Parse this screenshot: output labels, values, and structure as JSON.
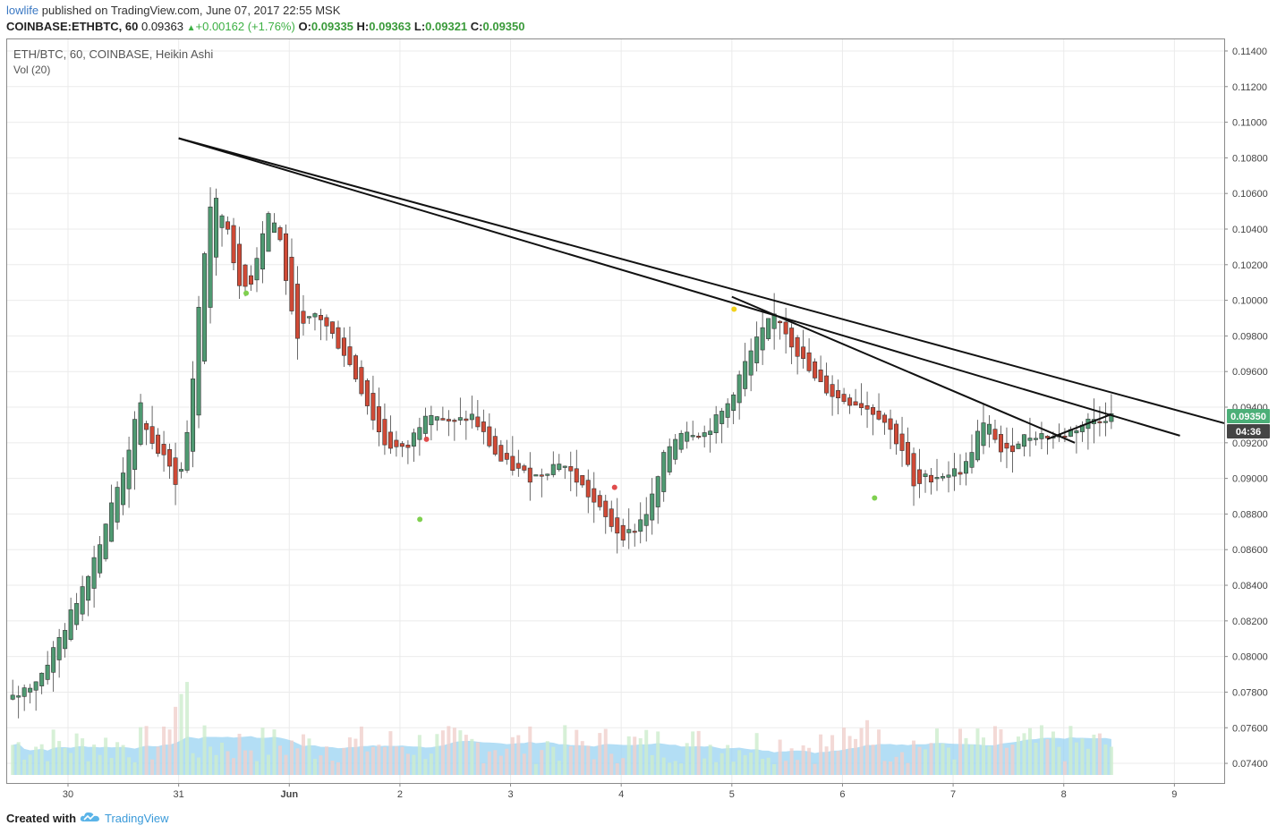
{
  "header": {
    "author": "lowlife",
    "published": "published on TradingView.com, June 07, 2017 22:55 MSK",
    "symbol": "COINBASE:ETHBTC, 60",
    "last": "0.09363",
    "change": "+0.00162 (+1.76%)",
    "o_label": "O:",
    "o_value": "0.09335",
    "h_label": "H:",
    "h_value": "0.09363",
    "l_label": "L:",
    "l_value": "0.09321",
    "c_label": "C:",
    "c_value": "0.09350"
  },
  "legend": {
    "series": "ETH/BTC, 60, COINBASE, Heikin Ashi",
    "volume": "Vol (20)"
  },
  "price_badge": "0.09350",
  "countdown_badge": "04:36",
  "footer": {
    "created_with": "Created with",
    "brand": "TradingView"
  },
  "colors": {
    "up": "#4f9a72",
    "down": "#d04a36",
    "volume_ma": "#9ad3f2",
    "vol_up": "#cdeccd",
    "vol_down": "#f0d0cc",
    "grid": "#ebebeb",
    "badge": "#4caf78",
    "badge_dark": "#444444",
    "brand": "#3a9ad9"
  },
  "chart_data": {
    "type": "candlestick",
    "style": "Heikin Ashi",
    "symbol": "ETH/BTC",
    "interval": "60",
    "exchange": "COINBASE",
    "y_ticks": [
      "0.11400",
      "0.11200",
      "0.11000",
      "0.10800",
      "0.10600",
      "0.10400",
      "0.10200",
      "0.10000",
      "0.09800",
      "0.09600",
      "0.09400",
      "0.09200",
      "0.09000",
      "0.08800",
      "0.08600",
      "0.08400",
      "0.08200",
      "0.08000",
      "0.07800",
      "0.07600",
      "0.07400"
    ],
    "ylim": [
      0.0734,
      0.1143
    ],
    "x_ticks": [
      "30",
      "31",
      "Jun",
      "2",
      "3",
      "4",
      "5",
      "6",
      "7",
      "8",
      "9"
    ],
    "x_tick_days": [
      -1.5,
      -0.5,
      0.5,
      1.5,
      2.5,
      3.5,
      4.5,
      5.5,
      6.5,
      7.5,
      8.5
    ],
    "xlim": [
      -2.05,
      8.95
    ],
    "close_path": [
      {
        "day": -2.0,
        "price": 0.0776
      },
      {
        "day": -1.75,
        "price": 0.0789
      },
      {
        "day": -1.5,
        "price": 0.082
      },
      {
        "day": -1.25,
        "price": 0.0858
      },
      {
        "day": -1.0,
        "price": 0.0905
      },
      {
        "day": -0.85,
        "price": 0.0942
      },
      {
        "day": -0.75,
        "price": 0.092
      },
      {
        "day": -0.6,
        "price": 0.0908
      },
      {
        "day": -0.5,
        "price": 0.0895
      },
      {
        "day": -0.4,
        "price": 0.0935
      },
      {
        "day": -0.3,
        "price": 0.101
      },
      {
        "day": -0.2,
        "price": 0.106
      },
      {
        "day": -0.05,
        "price": 0.104
      },
      {
        "day": 0.05,
        "price": 0.1005
      },
      {
        "day": 0.15,
        "price": 0.101
      },
      {
        "day": 0.3,
        "price": 0.105
      },
      {
        "day": 0.4,
        "price": 0.104
      },
      {
        "day": 0.55,
        "price": 0.098
      },
      {
        "day": 0.75,
        "price": 0.0993
      },
      {
        "day": 1.0,
        "price": 0.097
      },
      {
        "day": 1.15,
        "price": 0.095
      },
      {
        "day": 1.35,
        "price": 0.092
      },
      {
        "day": 1.55,
        "price": 0.0915
      },
      {
        "day": 1.75,
        "price": 0.094
      },
      {
        "day": 1.95,
        "price": 0.093
      },
      {
        "day": 2.15,
        "price": 0.0935
      },
      {
        "day": 2.4,
        "price": 0.091
      },
      {
        "day": 2.7,
        "price": 0.09
      },
      {
        "day": 2.95,
        "price": 0.091
      },
      {
        "day": 3.15,
        "price": 0.0895
      },
      {
        "day": 3.35,
        "price": 0.0878
      },
      {
        "day": 3.5,
        "price": 0.0868
      },
      {
        "day": 3.6,
        "price": 0.087
      },
      {
        "day": 3.75,
        "price": 0.0883
      },
      {
        "day": 3.9,
        "price": 0.0915
      },
      {
        "day": 4.05,
        "price": 0.0928
      },
      {
        "day": 4.25,
        "price": 0.0925
      },
      {
        "day": 4.45,
        "price": 0.094
      },
      {
        "day": 4.6,
        "price": 0.0962
      },
      {
        "day": 4.75,
        "price": 0.098
      },
      {
        "day": 4.9,
        "price": 0.0993
      },
      {
        "day": 5.05,
        "price": 0.0975
      },
      {
        "day": 5.25,
        "price": 0.0955
      },
      {
        "day": 5.45,
        "price": 0.0945
      },
      {
        "day": 5.65,
        "price": 0.0942
      },
      {
        "day": 5.85,
        "price": 0.0935
      },
      {
        "day": 6.05,
        "price": 0.0915
      },
      {
        "day": 6.15,
        "price": 0.0893
      },
      {
        "day": 6.25,
        "price": 0.09
      },
      {
        "day": 6.45,
        "price": 0.0903
      },
      {
        "day": 6.6,
        "price": 0.0905
      },
      {
        "day": 6.75,
        "price": 0.093
      },
      {
        "day": 6.85,
        "price": 0.0928
      },
      {
        "day": 6.95,
        "price": 0.0912
      },
      {
        "day": 7.1,
        "price": 0.0922
      },
      {
        "day": 7.25,
        "price": 0.0925
      },
      {
        "day": 7.45,
        "price": 0.0923
      },
      {
        "day": 7.6,
        "price": 0.0928
      },
      {
        "day": 7.75,
        "price": 0.0933
      },
      {
        "day": 7.9,
        "price": 0.0935
      }
    ],
    "trendlines": [
      {
        "from": {
          "day": -0.5,
          "price": 0.1091
        },
        "to": {
          "day": 8.55,
          "price": 0.0924
        }
      },
      {
        "from": {
          "day": -0.5,
          "price": 0.1091
        },
        "to": {
          "day": 8.95,
          "price": 0.0931
        }
      },
      {
        "from": {
          "day": 4.5,
          "price": 0.1002
        },
        "to": {
          "day": 7.6,
          "price": 0.092
        }
      },
      {
        "from": {
          "day": 7.35,
          "price": 0.0922
        },
        "to": {
          "day": 7.93,
          "price": 0.0936
        }
      }
    ],
    "markers": [
      {
        "day": 0.11,
        "price": 0.1004,
        "color": "#7fd04f"
      },
      {
        "day": 1.68,
        "price": 0.0877,
        "color": "#7fd04f"
      },
      {
        "day": 1.74,
        "price": 0.0922,
        "color": "#e04c4c"
      },
      {
        "day": 3.44,
        "price": 0.0895,
        "color": "#e04c4c"
      },
      {
        "day": 4.52,
        "price": 0.0995,
        "color": "#f2d21b"
      },
      {
        "day": 5.79,
        "price": 0.0889,
        "color": "#7fd04f"
      }
    ],
    "last_price": 0.0935,
    "volume_series": "Vol (20)"
  }
}
